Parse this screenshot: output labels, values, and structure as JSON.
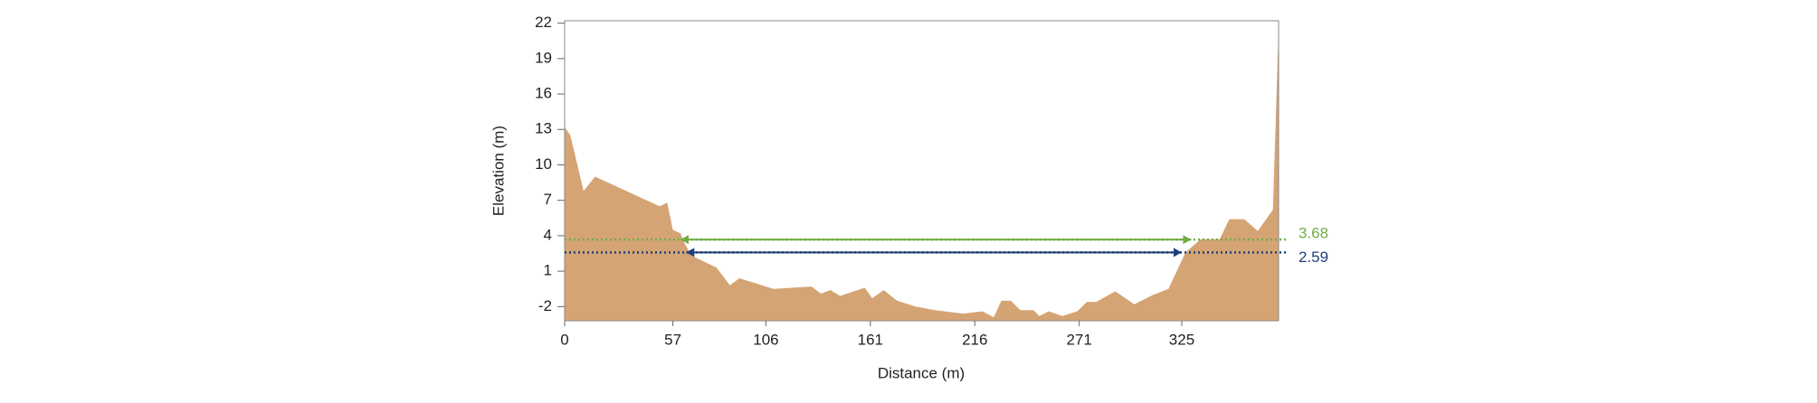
{
  "chart_data": {
    "type": "area",
    "x_label": "Distance (m)",
    "y_label": "Elevation (m)",
    "color": "#d5a474",
    "x": [
      0,
      3,
      10,
      16,
      50,
      54,
      57,
      61,
      63,
      67,
      80,
      87,
      92,
      100,
      110,
      130,
      135,
      140,
      145,
      158,
      162,
      168,
      175,
      185,
      195,
      210,
      220,
      226,
      230,
      235,
      240,
      247,
      250,
      255,
      262,
      270,
      275,
      280,
      290,
      300,
      310,
      318,
      327,
      335,
      345,
      350,
      358,
      365,
      373,
      376
    ],
    "values": [
      13.2,
      12.5,
      7.8,
      9,
      6.5,
      6.8,
      4.5,
      4.2,
      3.4,
      2.3,
      1.3,
      -0.2,
      0.4,
      0,
      -0.5,
      -0.3,
      -0.9,
      -0.6,
      -1.1,
      -0.4,
      -1.3,
      -0.6,
      -1.5,
      -2.0,
      -2.3,
      -2.6,
      -2.4,
      -2.9,
      -1.5,
      -1.5,
      -2.3,
      -2.3,
      -2.8,
      -2.4,
      -2.8,
      -2.4,
      -1.6,
      -1.6,
      -0.7,
      -1.8,
      -1.0,
      -0.5,
      2.6,
      3.7,
      3.7,
      5.4,
      5.4,
      4.4,
      6.2,
      21.5
    ],
    "xlim": [
      0,
      376
    ],
    "ylim": [
      -3.2,
      22.2
    ],
    "xticks": [
      0,
      57,
      106,
      161,
      216,
      271,
      325
    ],
    "yticks": [
      -2,
      1,
      4,
      7,
      10,
      13,
      16,
      19,
      22
    ],
    "levels": [
      {
        "value": 3.68,
        "color": "#70ad47",
        "from": 61,
        "to": 330
      },
      {
        "value": 2.59,
        "color": "#1f3f7a",
        "from": 64,
        "to": 325
      }
    ]
  }
}
